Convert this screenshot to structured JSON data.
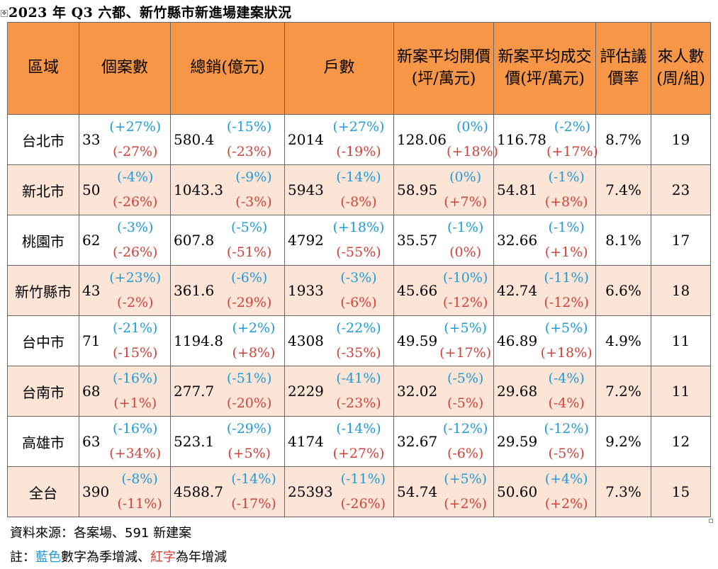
{
  "title": "2023 年 Q3 六都、新竹縣市新進場建案狀況",
  "headers": {
    "region": "區域",
    "cases": "個案數",
    "sales": "總銷(億元)",
    "units": "戶數",
    "open_price": "新案平均開價(坪/萬元)",
    "deal_price": "新案平均成交價(坪/萬元)",
    "bargain": "評估議價率",
    "visitors": "來人數(周/組)"
  },
  "rows": [
    {
      "region": "台北市",
      "cases": {
        "v": "33",
        "q": "(+27%)",
        "y": "(-27%)"
      },
      "sales": {
        "v": "580.4",
        "q": "(-15%)",
        "y": "(-23%)"
      },
      "units": {
        "v": "2014",
        "q": "(+27%)",
        "y": "(-19%)"
      },
      "open": {
        "v": "128.06",
        "q": "(0%)",
        "y": "(+18%)"
      },
      "deal": {
        "v": "116.78",
        "q": "(-2%)",
        "y": "(+17%)"
      },
      "bargain": "8.7%",
      "visitors": "19"
    },
    {
      "region": "新北市",
      "cases": {
        "v": "50",
        "q": "(-4%)",
        "y": "(-26%)"
      },
      "sales": {
        "v": "1043.3",
        "q": "(-9%)",
        "y": "(-3%)"
      },
      "units": {
        "v": "5943",
        "q": "(-14%)",
        "y": "(-8%)"
      },
      "open": {
        "v": "58.95",
        "q": "(0%)",
        "y": "(+7%)"
      },
      "deal": {
        "v": "54.81",
        "q": "(-1%)",
        "y": "(+8%)"
      },
      "bargain": "7.4%",
      "visitors": "23"
    },
    {
      "region": "桃園市",
      "cases": {
        "v": "62",
        "q": "(-3%)",
        "y": "(-26%)"
      },
      "sales": {
        "v": "607.8",
        "q": "(-5%)",
        "y": "(-51%)"
      },
      "units": {
        "v": "4792",
        "q": "(+18%)",
        "y": "(-55%)"
      },
      "open": {
        "v": "35.57",
        "q": "(-1%)",
        "y": "(0%)"
      },
      "deal": {
        "v": "32.66",
        "q": "(-1%)",
        "y": "(+1%)"
      },
      "bargain": "8.1%",
      "visitors": "17"
    },
    {
      "region": "新竹縣市",
      "cases": {
        "v": "43",
        "q": "(+23%)",
        "y": "(-2%)"
      },
      "sales": {
        "v": "361.6",
        "q": "(-6%)",
        "y": "(-29%)"
      },
      "units": {
        "v": "1933",
        "q": "(-3%)",
        "y": "(-6%)"
      },
      "open": {
        "v": "45.66",
        "q": "(-10%)",
        "y": "(-12%)"
      },
      "deal": {
        "v": "42.74",
        "q": "(-11%)",
        "y": "(-12%)"
      },
      "bargain": "6.6%",
      "visitors": "18"
    },
    {
      "region": "台中市",
      "cases": {
        "v": "71",
        "q": "(-21%)",
        "y": "(-15%)"
      },
      "sales": {
        "v": "1194.8",
        "q": "(+2%)",
        "y": "(+8%)"
      },
      "units": {
        "v": "4308",
        "q": "(-22%)",
        "y": "(-35%)"
      },
      "open": {
        "v": "49.59",
        "q": "(+5%)",
        "y": "(+17%)"
      },
      "deal": {
        "v": "46.89",
        "q": "(+5%)",
        "y": "(+18%)"
      },
      "bargain": "4.9%",
      "visitors": "11"
    },
    {
      "region": "台南市",
      "cases": {
        "v": "68",
        "q": "(-16%)",
        "y": "(+1%)"
      },
      "sales": {
        "v": "277.7",
        "q": "(-51%)",
        "y": "(-20%)"
      },
      "units": {
        "v": "2229",
        "q": "(-41%)",
        "y": "(-23%)"
      },
      "open": {
        "v": "32.02",
        "q": "(-5%)",
        "y": "(-5%)"
      },
      "deal": {
        "v": "29.68",
        "q": "(-4%)",
        "y": "(-4%)"
      },
      "bargain": "7.2%",
      "visitors": "11"
    },
    {
      "region": "高雄市",
      "cases": {
        "v": "63",
        "q": "(-16%)",
        "y": "(+34%)"
      },
      "sales": {
        "v": "523.1",
        "q": "(-29%)",
        "y": "(+5%)"
      },
      "units": {
        "v": "4174",
        "q": "(-14%)",
        "y": "(+27%)"
      },
      "open": {
        "v": "32.67",
        "q": "(-12%)",
        "y": "(-6%)"
      },
      "deal": {
        "v": "29.59",
        "q": "(-12%)",
        "y": "(-5%)"
      },
      "bargain": "9.2%",
      "visitors": "12"
    },
    {
      "region": "全台",
      "cases": {
        "v": "390",
        "q": "(-8%)",
        "y": "(-11%)"
      },
      "sales": {
        "v": "4588.7",
        "q": "(-14%)",
        "y": "(-17%)"
      },
      "units": {
        "v": "25393",
        "q": "(-11%)",
        "y": "(-26%)"
      },
      "open": {
        "v": "54.74",
        "q": "(+5%)",
        "y": "(+2%)"
      },
      "deal": {
        "v": "50.60",
        "q": "(+4%)",
        "y": "(+2%)"
      },
      "bargain": "7.3%",
      "visitors": "15"
    }
  ],
  "source_note": "資料來源：各案場、591 新建案",
  "legend": {
    "prefix": "註：",
    "blue_word": "藍色",
    "middle": "數字為季增減、",
    "red_word": "紅字",
    "suffix": "為年增減"
  },
  "colors": {
    "header_bg": "#f79646",
    "alt_row_bg": "#fce4d6",
    "quarter_change": "#1f9bd7",
    "year_change": "#d0433a"
  }
}
